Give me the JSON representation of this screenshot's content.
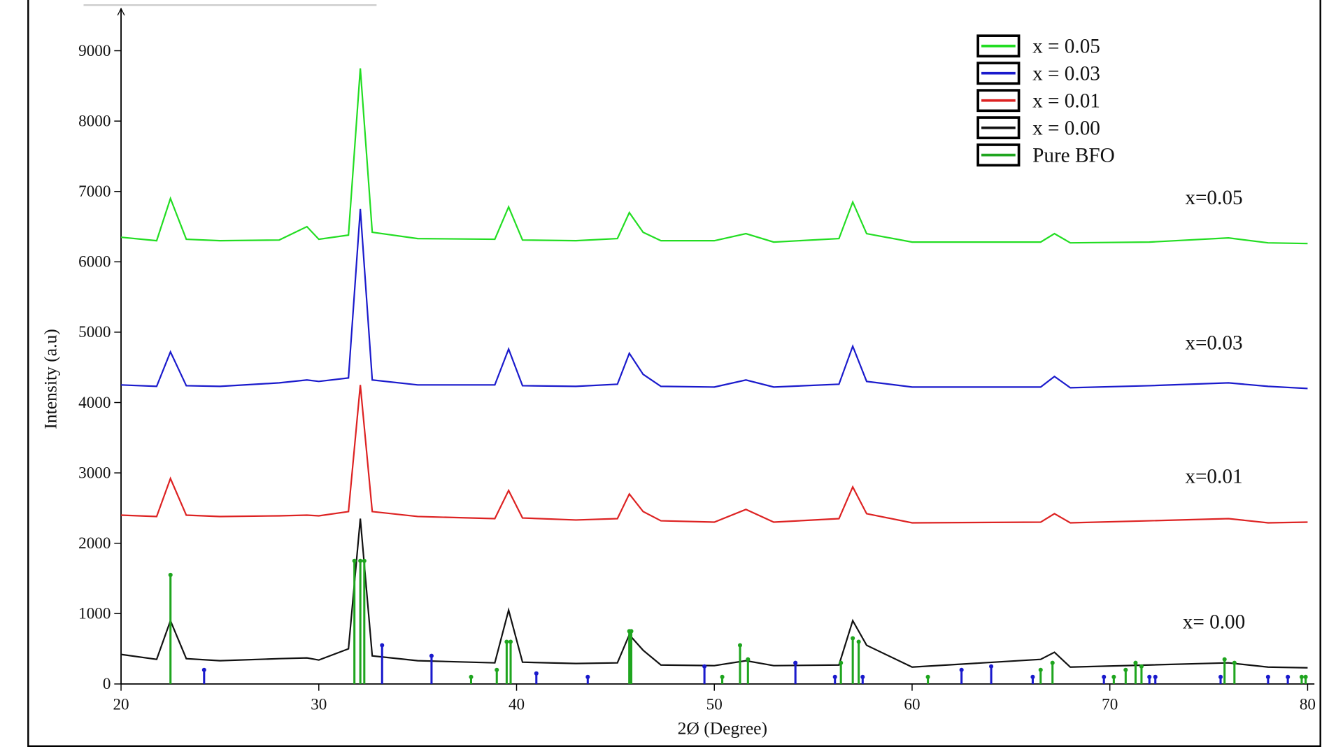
{
  "chart_data": {
    "type": "line",
    "x_label": "2Ø (Degree)",
    "y_label": "Intensity (a.u)",
    "xlim": [
      20,
      80
    ],
    "ylim": [
      0,
      9600
    ],
    "xticks": [
      20,
      30,
      40,
      50,
      60,
      70,
      80
    ],
    "yticks": [
      0,
      1000,
      2000,
      3000,
      4000,
      5000,
      6000,
      7000,
      8000,
      9000
    ],
    "x": [
      20,
      21.8,
      22.5,
      23.3,
      25,
      28,
      29.4,
      30,
      31.5,
      32.1,
      32.7,
      35,
      38.9,
      39.6,
      40.3,
      43,
      45.1,
      45.7,
      46.4,
      47.3,
      50,
      51.6,
      53,
      56.3,
      57.0,
      57.7,
      60,
      66.5,
      67.2,
      68,
      72,
      76,
      78,
      80
    ],
    "series": [
      {
        "name": "x = 0.05",
        "color": "#22dd22",
        "values": [
          6350,
          6300,
          6900,
          6320,
          6300,
          6310,
          6500,
          6320,
          6380,
          8750,
          6420,
          6330,
          6320,
          6780,
          6310,
          6300,
          6330,
          6700,
          6420,
          6300,
          6300,
          6400,
          6280,
          6330,
          6850,
          6400,
          6280,
          6280,
          6400,
          6270,
          6280,
          6340,
          6270,
          6260
        ]
      },
      {
        "name": "x = 0.03",
        "color": "#1a1acc",
        "values": [
          4250,
          4230,
          4720,
          4240,
          4230,
          4280,
          4320,
          4300,
          4350,
          6750,
          4320,
          4250,
          4250,
          4760,
          4240,
          4230,
          4260,
          4700,
          4400,
          4230,
          4220,
          4320,
          4220,
          4260,
          4800,
          4300,
          4220,
          4220,
          4370,
          4210,
          4240,
          4280,
          4230,
          4200
        ]
      },
      {
        "name": "x = 0.01",
        "color": "#dd2222",
        "values": [
          2400,
          2380,
          2920,
          2400,
          2380,
          2390,
          2400,
          2390,
          2450,
          4250,
          2450,
          2380,
          2350,
          2750,
          2360,
          2330,
          2350,
          2700,
          2450,
          2320,
          2300,
          2480,
          2300,
          2350,
          2800,
          2420,
          2290,
          2300,
          2420,
          2290,
          2320,
          2350,
          2290,
          2300
        ]
      },
      {
        "name": "x = 0.00",
        "color": "#111111",
        "values": [
          420,
          350,
          900,
          360,
          330,
          360,
          370,
          340,
          500,
          2350,
          400,
          330,
          300,
          1050,
          310,
          290,
          300,
          700,
          480,
          270,
          260,
          330,
          260,
          270,
          900,
          550,
          240,
          350,
          450,
          240,
          270,
          300,
          240,
          230
        ]
      }
    ],
    "stick_series": [
      {
        "name": "Pure BFO",
        "color": "#1fa51f",
        "x": [
          22.5,
          31.8,
          32.1,
          32.3,
          37.7,
          39.0,
          39.5,
          39.7,
          45.7,
          45.8,
          50.4,
          51.3,
          51.7,
          56.4,
          57.0,
          57.3,
          60.8,
          66.5,
          67.1,
          70.2,
          70.8,
          71.3,
          71.6,
          75.8,
          76.3,
          79.7,
          79.9
        ],
        "values": [
          1550,
          1750,
          1750,
          1750,
          100,
          200,
          600,
          600,
          750,
          750,
          100,
          550,
          350,
          300,
          650,
          600,
          100,
          200,
          300,
          100,
          200,
          300,
          250,
          350,
          300,
          100,
          100
        ]
      },
      {
        "color": "#1a1acc",
        "x": [
          24.2,
          33.2,
          35.7,
          41.0,
          43.6,
          49.5,
          54.1,
          56.1,
          57.5,
          62.5,
          64.0,
          66.1,
          69.7,
          72.0,
          72.3,
          75.6,
          78.0,
          79.0
        ],
        "values": [
          200,
          550,
          400,
          150,
          100,
          250,
          300,
          100,
          100,
          200,
          250,
          100,
          100,
          100,
          100,
          100,
          100,
          100
        ]
      }
    ],
    "annotations": [
      "x=0.05",
      "x=0.03",
      "x=0.01",
      "x= 0.00"
    ]
  }
}
